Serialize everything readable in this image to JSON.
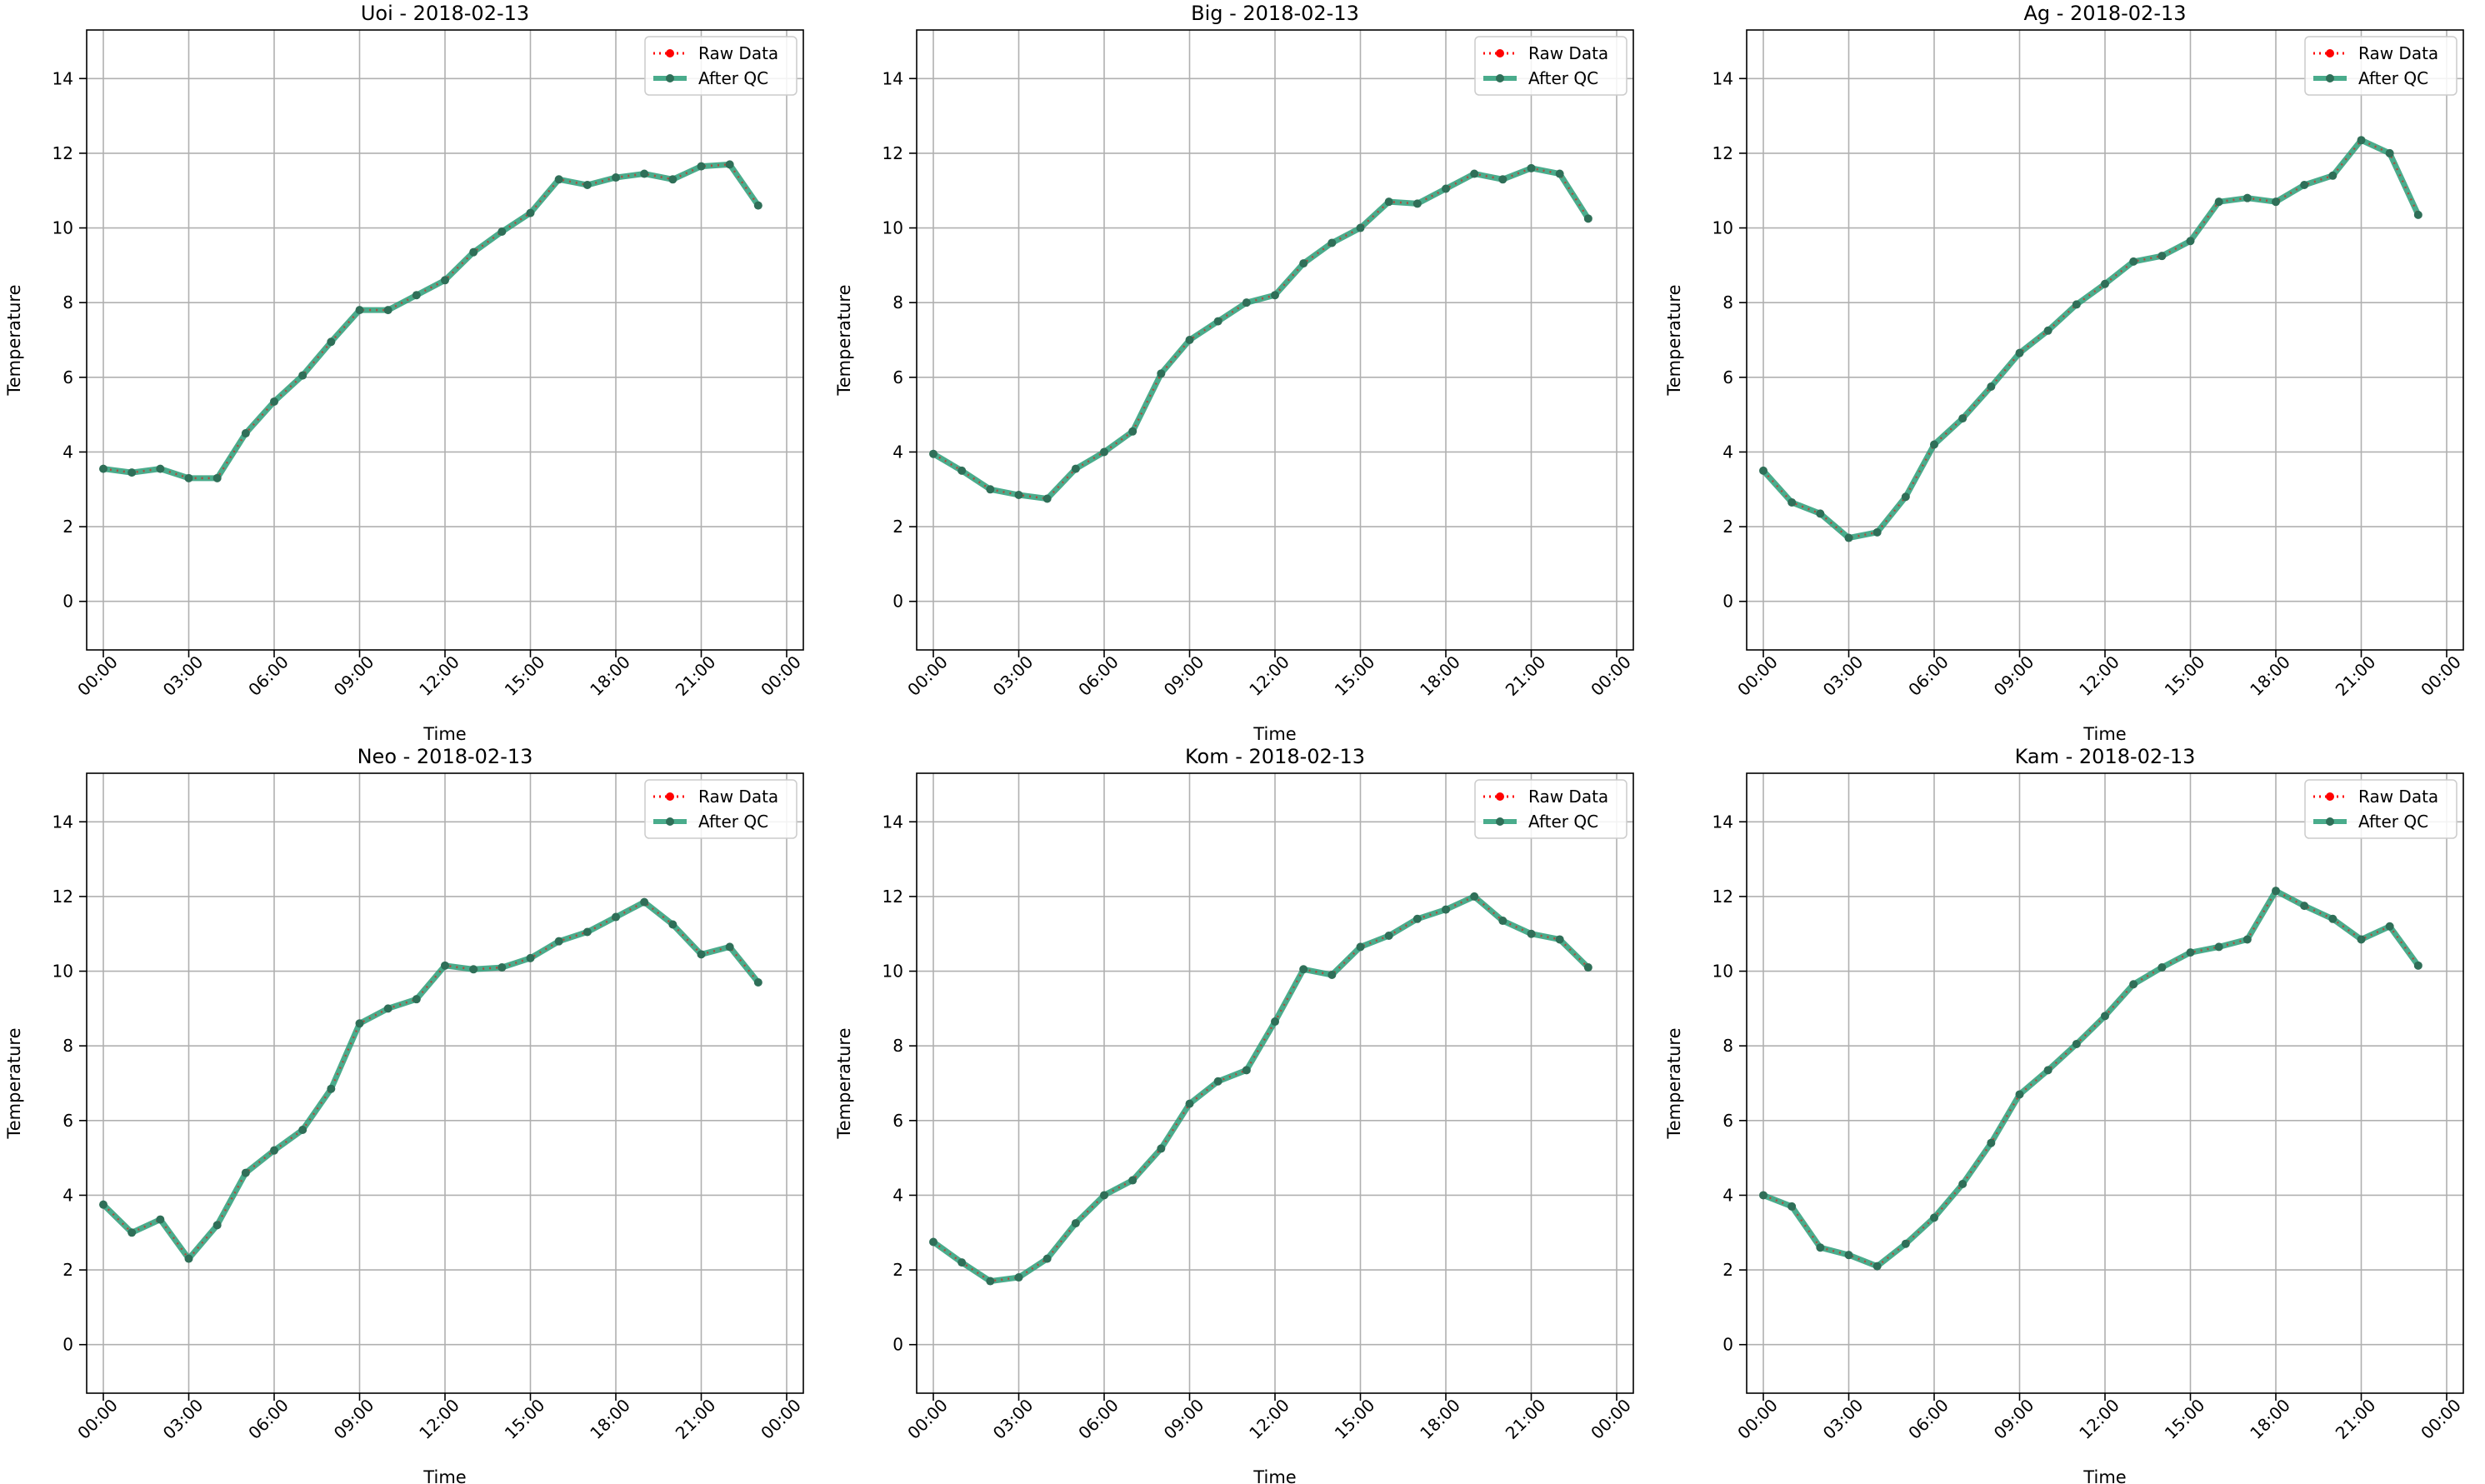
{
  "chart_data": [
    {
      "type": "line",
      "title": "Uoi - 2018-02-13",
      "xlabel": "Time",
      "ylabel": "Temperature",
      "x": [
        "00:00",
        "01:00",
        "02:00",
        "03:00",
        "04:00",
        "05:00",
        "06:00",
        "07:00",
        "08:00",
        "09:00",
        "10:00",
        "11:00",
        "12:00",
        "13:00",
        "14:00",
        "15:00",
        "16:00",
        "17:00",
        "18:00",
        "19:00",
        "20:00",
        "21:00",
        "22:00",
        "23:00"
      ],
      "xticks": [
        "00:00",
        "03:00",
        "06:00",
        "09:00",
        "12:00",
        "15:00",
        "18:00",
        "21:00",
        "00:00"
      ],
      "yticks": [
        0,
        2,
        4,
        6,
        8,
        10,
        12,
        14
      ],
      "ylim": [
        -1.3,
        15.3
      ],
      "grid": true,
      "legend": "top-right",
      "series": [
        {
          "name": "Raw Data",
          "color": "#ff0000",
          "style": "dotted-markers",
          "values": [
            3.55,
            3.45,
            3.55,
            3.3,
            3.3,
            4.5,
            5.35,
            6.05,
            6.95,
            7.8,
            7.8,
            8.2,
            8.6,
            9.35,
            9.9,
            10.4,
            11.3,
            11.15,
            11.35,
            11.45,
            11.3,
            11.65,
            11.7,
            10.6
          ]
        },
        {
          "name": "After QC",
          "color": "#2a9d78",
          "style": "solid-markers",
          "values": [
            3.55,
            3.45,
            3.55,
            3.3,
            3.3,
            4.5,
            5.35,
            6.05,
            6.95,
            7.8,
            7.8,
            8.2,
            8.6,
            9.35,
            9.9,
            10.4,
            11.3,
            11.15,
            11.35,
            11.45,
            11.3,
            11.65,
            11.7,
            10.6
          ]
        }
      ]
    },
    {
      "type": "line",
      "title": "Big - 2018-02-13",
      "xlabel": "Time",
      "ylabel": "Temperature",
      "x": [
        "00:00",
        "01:00",
        "02:00",
        "03:00",
        "04:00",
        "05:00",
        "06:00",
        "07:00",
        "08:00",
        "09:00",
        "10:00",
        "11:00",
        "12:00",
        "13:00",
        "14:00",
        "15:00",
        "16:00",
        "17:00",
        "18:00",
        "19:00",
        "20:00",
        "21:00",
        "22:00",
        "23:00"
      ],
      "xticks": [
        "00:00",
        "03:00",
        "06:00",
        "09:00",
        "12:00",
        "15:00",
        "18:00",
        "21:00",
        "00:00"
      ],
      "yticks": [
        0,
        2,
        4,
        6,
        8,
        10,
        12,
        14
      ],
      "ylim": [
        -1.3,
        15.3
      ],
      "grid": true,
      "legend": "top-right",
      "series": [
        {
          "name": "Raw Data",
          "color": "#ff0000",
          "style": "dotted-markers",
          "values": [
            3.95,
            3.5,
            3.0,
            2.85,
            2.75,
            3.55,
            4.0,
            4.55,
            6.1,
            7.0,
            7.5,
            8.0,
            8.2,
            9.05,
            9.6,
            10.0,
            10.7,
            10.65,
            11.05,
            11.45,
            11.3,
            11.6,
            11.45,
            10.25
          ]
        },
        {
          "name": "After QC",
          "color": "#2a9d78",
          "style": "solid-markers",
          "values": [
            3.95,
            3.5,
            3.0,
            2.85,
            2.75,
            3.55,
            4.0,
            4.55,
            6.1,
            7.0,
            7.5,
            8.0,
            8.2,
            9.05,
            9.6,
            10.0,
            10.7,
            10.65,
            11.05,
            11.45,
            11.3,
            11.6,
            11.45,
            10.25
          ]
        }
      ]
    },
    {
      "type": "line",
      "title": "Ag - 2018-02-13",
      "xlabel": "Time",
      "ylabel": "Temperature",
      "x": [
        "00:00",
        "01:00",
        "02:00",
        "03:00",
        "04:00",
        "05:00",
        "06:00",
        "07:00",
        "08:00",
        "09:00",
        "10:00",
        "11:00",
        "12:00",
        "13:00",
        "14:00",
        "15:00",
        "16:00",
        "17:00",
        "18:00",
        "19:00",
        "20:00",
        "21:00",
        "22:00",
        "23:00"
      ],
      "xticks": [
        "00:00",
        "03:00",
        "06:00",
        "09:00",
        "12:00",
        "15:00",
        "18:00",
        "21:00",
        "00:00"
      ],
      "yticks": [
        0,
        2,
        4,
        6,
        8,
        10,
        12,
        14
      ],
      "ylim": [
        -1.3,
        15.3
      ],
      "grid": true,
      "legend": "top-right",
      "series": [
        {
          "name": "Raw Data",
          "color": "#ff0000",
          "style": "dotted-markers",
          "values": [
            3.5,
            2.65,
            2.35,
            1.7,
            1.85,
            2.8,
            4.2,
            4.9,
            5.75,
            6.65,
            7.25,
            7.95,
            8.5,
            9.1,
            9.25,
            9.65,
            10.7,
            10.8,
            10.7,
            11.15,
            11.4,
            12.35,
            12.0,
            10.35
          ]
        },
        {
          "name": "After QC",
          "color": "#2a9d78",
          "style": "solid-markers",
          "values": [
            3.5,
            2.65,
            2.35,
            1.7,
            1.85,
            2.8,
            4.2,
            4.9,
            5.75,
            6.65,
            7.25,
            7.95,
            8.5,
            9.1,
            9.25,
            9.65,
            10.7,
            10.8,
            10.7,
            11.15,
            11.4,
            12.35,
            12.0,
            10.35
          ]
        }
      ]
    },
    {
      "type": "line",
      "title": "Neo - 2018-02-13",
      "xlabel": "Time",
      "ylabel": "Temperature",
      "x": [
        "00:00",
        "01:00",
        "02:00",
        "03:00",
        "04:00",
        "05:00",
        "06:00",
        "07:00",
        "08:00",
        "09:00",
        "10:00",
        "11:00",
        "12:00",
        "13:00",
        "14:00",
        "15:00",
        "16:00",
        "17:00",
        "18:00",
        "19:00",
        "20:00",
        "21:00",
        "22:00",
        "23:00"
      ],
      "xticks": [
        "00:00",
        "03:00",
        "06:00",
        "09:00",
        "12:00",
        "15:00",
        "18:00",
        "21:00",
        "00:00"
      ],
      "yticks": [
        0,
        2,
        4,
        6,
        8,
        10,
        12,
        14
      ],
      "ylim": [
        -1.3,
        15.3
      ],
      "grid": true,
      "legend": "top-right",
      "series": [
        {
          "name": "Raw Data",
          "color": "#ff0000",
          "style": "dotted-markers",
          "values": [
            3.75,
            3.0,
            3.35,
            2.3,
            3.2,
            4.6,
            5.2,
            5.75,
            6.85,
            8.6,
            9.0,
            9.25,
            10.15,
            10.05,
            10.1,
            10.35,
            10.8,
            11.05,
            11.45,
            11.85,
            11.25,
            10.45,
            10.65,
            9.7
          ]
        },
        {
          "name": "After QC",
          "color": "#2a9d78",
          "style": "solid-markers",
          "values": [
            3.75,
            3.0,
            3.35,
            2.3,
            3.2,
            4.6,
            5.2,
            5.75,
            6.85,
            8.6,
            9.0,
            9.25,
            10.15,
            10.05,
            10.1,
            10.35,
            10.8,
            11.05,
            11.45,
            11.85,
            11.25,
            10.45,
            10.65,
            9.7
          ]
        }
      ]
    },
    {
      "type": "line",
      "title": "Kom - 2018-02-13",
      "xlabel": "Time",
      "ylabel": "Temperature",
      "x": [
        "00:00",
        "01:00",
        "02:00",
        "03:00",
        "04:00",
        "05:00",
        "06:00",
        "07:00",
        "08:00",
        "09:00",
        "10:00",
        "11:00",
        "12:00",
        "13:00",
        "14:00",
        "15:00",
        "16:00",
        "17:00",
        "18:00",
        "19:00",
        "20:00",
        "21:00",
        "22:00",
        "23:00"
      ],
      "xticks": [
        "00:00",
        "03:00",
        "06:00",
        "09:00",
        "12:00",
        "15:00",
        "18:00",
        "21:00",
        "00:00"
      ],
      "yticks": [
        0,
        2,
        4,
        6,
        8,
        10,
        12,
        14
      ],
      "ylim": [
        -1.3,
        15.3
      ],
      "grid": true,
      "legend": "top-right",
      "series": [
        {
          "name": "Raw Data",
          "color": "#ff0000",
          "style": "dotted-markers",
          "values": [
            2.75,
            2.2,
            1.7,
            1.8,
            2.3,
            3.25,
            4.0,
            4.4,
            5.25,
            6.45,
            7.05,
            7.35,
            8.65,
            10.05,
            9.9,
            10.65,
            10.95,
            11.4,
            11.65,
            12.0,
            11.35,
            11.0,
            10.85,
            10.1
          ]
        },
        {
          "name": "After QC",
          "color": "#2a9d78",
          "style": "solid-markers",
          "values": [
            2.75,
            2.2,
            1.7,
            1.8,
            2.3,
            3.25,
            4.0,
            4.4,
            5.25,
            6.45,
            7.05,
            7.35,
            8.65,
            10.05,
            9.9,
            10.65,
            10.95,
            11.4,
            11.65,
            12.0,
            11.35,
            11.0,
            10.85,
            10.1
          ]
        }
      ]
    },
    {
      "type": "line",
      "title": "Kam - 2018-02-13",
      "xlabel": "Time",
      "ylabel": "Temperature",
      "x": [
        "00:00",
        "01:00",
        "02:00",
        "03:00",
        "04:00",
        "05:00",
        "06:00",
        "07:00",
        "08:00",
        "09:00",
        "10:00",
        "11:00",
        "12:00",
        "13:00",
        "14:00",
        "15:00",
        "16:00",
        "17:00",
        "18:00",
        "19:00",
        "20:00",
        "21:00",
        "22:00",
        "23:00"
      ],
      "xticks": [
        "00:00",
        "03:00",
        "06:00",
        "09:00",
        "12:00",
        "15:00",
        "18:00",
        "21:00",
        "00:00"
      ],
      "yticks": [
        0,
        2,
        4,
        6,
        8,
        10,
        12,
        14
      ],
      "ylim": [
        -1.3,
        15.3
      ],
      "grid": true,
      "legend": "top-right",
      "series": [
        {
          "name": "Raw Data",
          "color": "#ff0000",
          "style": "dotted-markers",
          "values": [
            4.0,
            3.7,
            2.6,
            2.4,
            2.1,
            2.7,
            3.4,
            4.3,
            5.4,
            6.7,
            7.35,
            8.05,
            8.8,
            9.65,
            10.1,
            10.5,
            10.65,
            10.85,
            12.15,
            11.75,
            11.4,
            10.85,
            11.2,
            10.15
          ]
        },
        {
          "name": "After QC",
          "color": "#2a9d78",
          "style": "solid-markers",
          "values": [
            4.0,
            3.7,
            2.6,
            2.4,
            2.1,
            2.7,
            3.4,
            4.3,
            5.4,
            6.7,
            7.35,
            8.05,
            8.8,
            9.65,
            10.1,
            10.5,
            10.65,
            10.85,
            12.15,
            11.75,
            11.4,
            10.85,
            11.2,
            10.15
          ]
        }
      ]
    }
  ]
}
